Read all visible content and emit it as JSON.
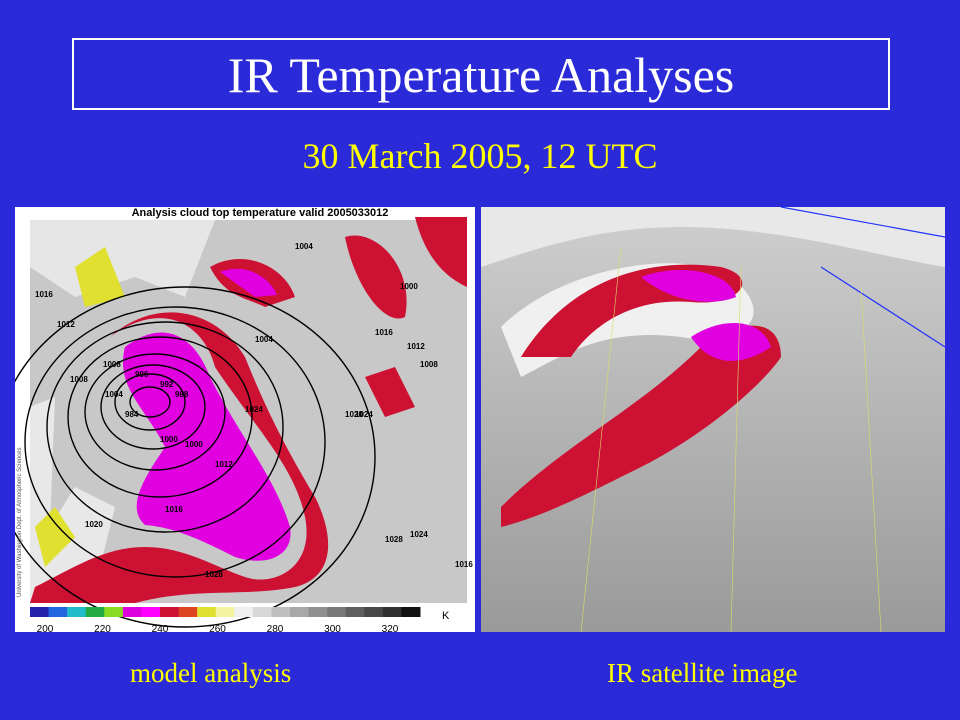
{
  "slide": {
    "title": "IR Temperature Analyses",
    "subtitle": "30 March 2005, 12 UTC",
    "left_panel": {
      "heading": "Analysis cloud top temperature valid 2005033012",
      "credit": "University of Washington Dept. of Atmospheric Sciences",
      "contour_labels": [
        "1004",
        "1000",
        "1016",
        "1012",
        "1008",
        "1004",
        "1008",
        "1016",
        "1012",
        "1008",
        "1004",
        "1000",
        "996",
        "992",
        "988",
        "984",
        "1000",
        "1012",
        "1016",
        "1020",
        "1024",
        "1028",
        "1024",
        "1016",
        "1020",
        "1024",
        "1028"
      ],
      "colorbar": {
        "ticks": [
          200,
          220,
          240,
          260,
          280,
          300,
          320
        ],
        "unit": "K"
      },
      "caption": "model analysis"
    },
    "right_panel": {
      "caption": "IR satellite image"
    }
  }
}
